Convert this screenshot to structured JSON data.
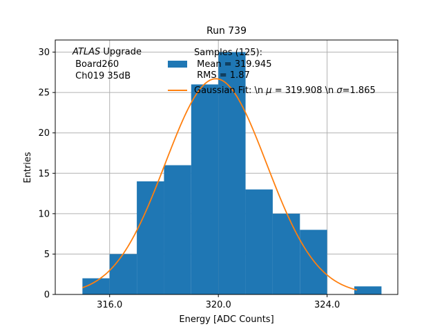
{
  "chart_data": {
    "type": "bar",
    "title": "Run 739",
    "xlabel": "Energy [ADC Counts]",
    "ylabel": "Entries",
    "xlim": [
      314.0,
      326.6
    ],
    "ylim": [
      0,
      31.5
    ],
    "grid": true,
    "x_ticks": [
      316.0,
      320.0,
      324.0
    ],
    "x_tick_labels": [
      "316.0",
      "320.0",
      "324.0"
    ],
    "y_ticks": [
      0,
      5,
      10,
      15,
      20,
      25,
      30
    ],
    "y_tick_labels": [
      "0",
      "5",
      "10",
      "15",
      "20",
      "25",
      "30"
    ],
    "histogram": {
      "bin_edges": [
        315,
        316,
        317,
        318,
        319,
        320,
        321,
        322,
        323,
        324,
        325,
        326
      ],
      "counts": [
        2,
        5,
        14,
        16,
        26,
        30,
        13,
        10,
        8,
        0,
        1
      ],
      "color": "#1f77b4"
    },
    "fit": {
      "mu": 319.908,
      "sigma": 1.865,
      "amplitude": 26.7,
      "x_range": [
        315.0,
        325.1
      ],
      "color": "#ff7f0e"
    },
    "annotation": {
      "line1_italic": "ATLAS",
      "line1_rest": " Upgrade",
      "line2": " Board260",
      "line3": " Ch019 35dB"
    },
    "legend": {
      "position": "top-right",
      "entries": [
        {
          "kind": "patch",
          "lines": [
            "Samples (125):",
            " Mean = 319.945",
            " RMS = 1.87"
          ]
        },
        {
          "kind": "line",
          "prefix": "Gaussian Fit: \\n ",
          "mu_symbol": "μ",
          "middle": " = 319.908 \\n ",
          "sigma_symbol": "σ",
          "suffix": "=1.865"
        }
      ]
    }
  }
}
